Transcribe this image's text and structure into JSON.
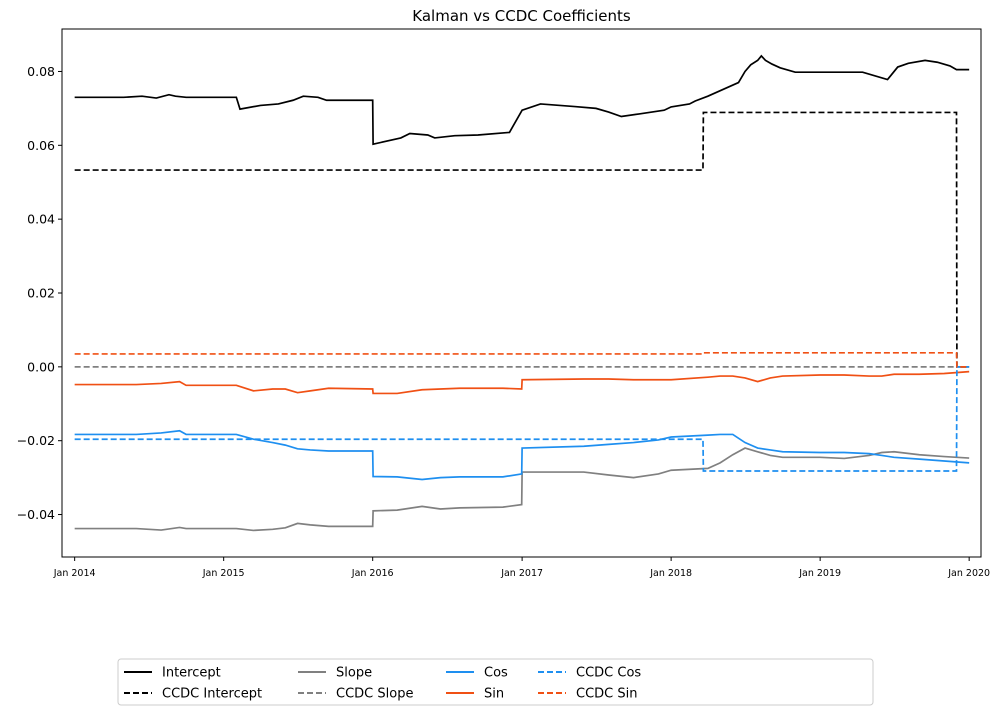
{
  "chart_data": {
    "type": "line",
    "title": "Kalman vs CCDC Coefficients",
    "xlabel": "",
    "ylabel": "",
    "x_axis": {
      "type": "date",
      "range": [
        "2013-12-01",
        "2020-01-30"
      ],
      "ticks": [
        "2014-01-01",
        "2015-01-01",
        "2016-01-01",
        "2017-01-01",
        "2018-01-01",
        "2019-01-01",
        "2020-01-01"
      ],
      "tick_labels": [
        "Jan 2014",
        "Jan 2015",
        "Jan 2016",
        "Jan 2017",
        "Jan 2018",
        "Jan 2019",
        "Jan 2020"
      ]
    },
    "y_axis": {
      "range": [
        -0.0515,
        0.0915
      ],
      "ticks": [
        -0.04,
        -0.02,
        0.0,
        0.02,
        0.04,
        0.06,
        0.08
      ],
      "tick_labels": [
        "−0.04",
        "−0.02",
        "0.00",
        "0.02",
        "0.04",
        "0.06",
        "0.08"
      ]
    },
    "grid": false,
    "legend_position": "bottom-center",
    "series": [
      {
        "name": "Intercept",
        "color": "#000000",
        "dash": "solid",
        "x": [
          "2014-01-01",
          "2014-05-01",
          "2014-06-15",
          "2014-07-20",
          "2014-08-20",
          "2014-09-05",
          "2014-10-01",
          "2015-02-01",
          "2015-02-10",
          "2015-04-01",
          "2015-05-15",
          "2015-06-20",
          "2015-07-15",
          "2015-08-20",
          "2015-09-10",
          "2016-01-01",
          "2016-01-02",
          "2016-03-10",
          "2016-04-01",
          "2016-05-15",
          "2016-06-01",
          "2016-07-20",
          "2016-09-15",
          "2016-12-01",
          "2017-01-01",
          "2017-02-15",
          "2017-05-10",
          "2017-07-01",
          "2017-08-01",
          "2017-09-01",
          "2017-10-15",
          "2017-12-15",
          "2018-01-01",
          "2018-02-15",
          "2018-03-01",
          "2018-04-01",
          "2018-06-15",
          "2018-07-01",
          "2018-07-15",
          "2018-08-01",
          "2018-08-10",
          "2018-08-20",
          "2018-09-05",
          "2018-09-25",
          "2018-11-01",
          "2019-04-15",
          "2019-06-15",
          "2019-07-10",
          "2019-08-05",
          "2019-09-15",
          "2019-10-15",
          "2019-11-15",
          "2019-12-01",
          "2020-01-01"
        ],
        "y": [
          0.073,
          0.073,
          0.0733,
          0.0728,
          0.0737,
          0.0733,
          0.073,
          0.073,
          0.0698,
          0.0708,
          0.0712,
          0.0722,
          0.0733,
          0.073,
          0.0722,
          0.0722,
          0.0603,
          0.062,
          0.0632,
          0.0628,
          0.062,
          0.0626,
          0.0628,
          0.0635,
          0.0695,
          0.0712,
          0.0705,
          0.07,
          0.069,
          0.0678,
          0.0685,
          0.0695,
          0.0704,
          0.0712,
          0.072,
          0.0733,
          0.077,
          0.08,
          0.0818,
          0.083,
          0.0842,
          0.083,
          0.082,
          0.081,
          0.0798,
          0.0798,
          0.0778,
          0.0812,
          0.0822,
          0.083,
          0.0825,
          0.0815,
          0.0805,
          0.0805
        ]
      },
      {
        "name": "CCDC Intercept",
        "color": "#000000",
        "dash": "dashed",
        "x": [
          "2014-01-01",
          "2018-03-20",
          "2018-03-21",
          "2019-12-01",
          "2019-12-02",
          "2020-01-01"
        ],
        "y": [
          0.0533,
          0.0533,
          0.0689,
          0.0689,
          0.0,
          0.0
        ]
      },
      {
        "name": "Slope",
        "color": "#808080",
        "dash": "solid",
        "x": [
          "2014-01-01",
          "2014-06-01",
          "2014-08-01",
          "2014-09-15",
          "2014-10-01",
          "2015-02-01",
          "2015-03-15",
          "2015-05-01",
          "2015-06-01",
          "2015-07-01",
          "2015-08-01",
          "2015-09-15",
          "2016-01-01",
          "2016-01-02",
          "2016-03-01",
          "2016-05-01",
          "2016-06-15",
          "2016-08-01",
          "2016-11-15",
          "2016-12-31",
          "2017-01-01",
          "2017-06-01",
          "2017-08-01",
          "2017-10-01",
          "2017-12-01",
          "2018-01-01",
          "2018-04-01",
          "2018-05-01",
          "2018-06-01",
          "2018-07-01",
          "2018-08-01",
          "2018-09-01",
          "2018-10-01",
          "2019-01-01",
          "2019-03-01",
          "2019-05-01",
          "2019-06-01",
          "2019-07-01",
          "2019-09-01",
          "2019-11-01",
          "2020-01-01"
        ],
        "y": [
          -0.0438,
          -0.0438,
          -0.0442,
          -0.0435,
          -0.0438,
          -0.0438,
          -0.0443,
          -0.044,
          -0.0436,
          -0.0424,
          -0.0428,
          -0.0432,
          -0.0432,
          -0.039,
          -0.0388,
          -0.0378,
          -0.0385,
          -0.0382,
          -0.038,
          -0.0373,
          -0.0285,
          -0.0285,
          -0.0293,
          -0.03,
          -0.029,
          -0.028,
          -0.0275,
          -0.026,
          -0.0238,
          -0.022,
          -0.023,
          -0.024,
          -0.0245,
          -0.0245,
          -0.0248,
          -0.024,
          -0.0232,
          -0.023,
          -0.0238,
          -0.0243,
          -0.0247
        ]
      },
      {
        "name": "CCDC Slope",
        "color": "#808080",
        "dash": "dashed",
        "x": [
          "2014-01-01",
          "2020-01-01"
        ],
        "y": [
          0.0,
          0.0
        ]
      },
      {
        "name": "Cos",
        "color": "#1e8ff0",
        "dash": "solid",
        "x": [
          "2014-01-01",
          "2014-06-01",
          "2014-08-01",
          "2014-09-15",
          "2014-10-01",
          "2015-02-01",
          "2015-03-15",
          "2015-05-01",
          "2015-06-01",
          "2015-07-01",
          "2015-08-01",
          "2015-09-15",
          "2016-01-01",
          "2016-01-02",
          "2016-03-01",
          "2016-05-01",
          "2016-06-15",
          "2016-08-01",
          "2016-11-15",
          "2016-12-31",
          "2017-01-01",
          "2017-06-01",
          "2017-08-01",
          "2017-10-01",
          "2017-12-01",
          "2018-01-01",
          "2018-04-01",
          "2018-05-01",
          "2018-06-01",
          "2018-07-01",
          "2018-08-01",
          "2018-09-01",
          "2018-10-01",
          "2019-01-01",
          "2019-03-01",
          "2019-05-01",
          "2019-06-01",
          "2019-07-01",
          "2019-09-01",
          "2019-11-01",
          "2020-01-01"
        ],
        "y": [
          -0.0183,
          -0.0183,
          -0.0179,
          -0.0173,
          -0.0183,
          -0.0183,
          -0.0196,
          -0.0205,
          -0.0212,
          -0.0222,
          -0.0225,
          -0.0228,
          -0.0228,
          -0.0297,
          -0.0298,
          -0.0305,
          -0.03,
          -0.0298,
          -0.0298,
          -0.029,
          -0.022,
          -0.0215,
          -0.021,
          -0.0205,
          -0.0198,
          -0.019,
          -0.0185,
          -0.0183,
          -0.0183,
          -0.0205,
          -0.022,
          -0.0225,
          -0.023,
          -0.0232,
          -0.0232,
          -0.0235,
          -0.024,
          -0.0245,
          -0.025,
          -0.0255,
          -0.026
        ]
      },
      {
        "name": "Sin",
        "color": "#f05014",
        "dash": "solid",
        "x": [
          "2014-01-01",
          "2014-06-01",
          "2014-08-01",
          "2014-09-15",
          "2014-10-01",
          "2015-02-01",
          "2015-03-15",
          "2015-05-01",
          "2015-06-01",
          "2015-07-01",
          "2015-08-01",
          "2015-09-15",
          "2016-01-01",
          "2016-01-02",
          "2016-03-01",
          "2016-05-01",
          "2016-06-15",
          "2016-08-01",
          "2016-11-15",
          "2016-12-31",
          "2017-01-01",
          "2017-06-01",
          "2017-08-01",
          "2017-10-01",
          "2017-12-01",
          "2018-01-01",
          "2018-04-01",
          "2018-05-01",
          "2018-06-01",
          "2018-07-01",
          "2018-08-01",
          "2018-09-01",
          "2018-10-01",
          "2019-01-01",
          "2019-03-01",
          "2019-05-01",
          "2019-06-01",
          "2019-07-01",
          "2019-09-01",
          "2019-11-01",
          "2020-01-01"
        ],
        "y": [
          -0.0048,
          -0.0048,
          -0.0045,
          -0.004,
          -0.005,
          -0.005,
          -0.0065,
          -0.006,
          -0.006,
          -0.007,
          -0.0065,
          -0.0058,
          -0.006,
          -0.0072,
          -0.0072,
          -0.0062,
          -0.006,
          -0.0058,
          -0.0058,
          -0.006,
          -0.0035,
          -0.0033,
          -0.0033,
          -0.0035,
          -0.0035,
          -0.0035,
          -0.0028,
          -0.0025,
          -0.0025,
          -0.003,
          -0.004,
          -0.003,
          -0.0025,
          -0.0022,
          -0.0022,
          -0.0025,
          -0.0025,
          -0.002,
          -0.002,
          -0.0018,
          -0.0013
        ]
      },
      {
        "name": "CCDC Cos",
        "color": "#1e8ff0",
        "dash": "dashed",
        "x": [
          "2014-01-01",
          "2018-03-20",
          "2018-03-21",
          "2019-12-01",
          "2019-12-02",
          "2020-01-01"
        ],
        "y": [
          -0.0196,
          -0.0196,
          -0.0282,
          -0.0282,
          0.0,
          0.0
        ]
      },
      {
        "name": "CCDC Sin",
        "color": "#f05014",
        "dash": "dashed",
        "x": [
          "2014-01-01",
          "2018-03-20",
          "2018-03-21",
          "2019-12-01",
          "2019-12-02",
          "2020-01-01"
        ],
        "y": [
          0.0035,
          0.0035,
          0.0038,
          0.0038,
          0.0,
          0.0
        ]
      }
    ]
  }
}
